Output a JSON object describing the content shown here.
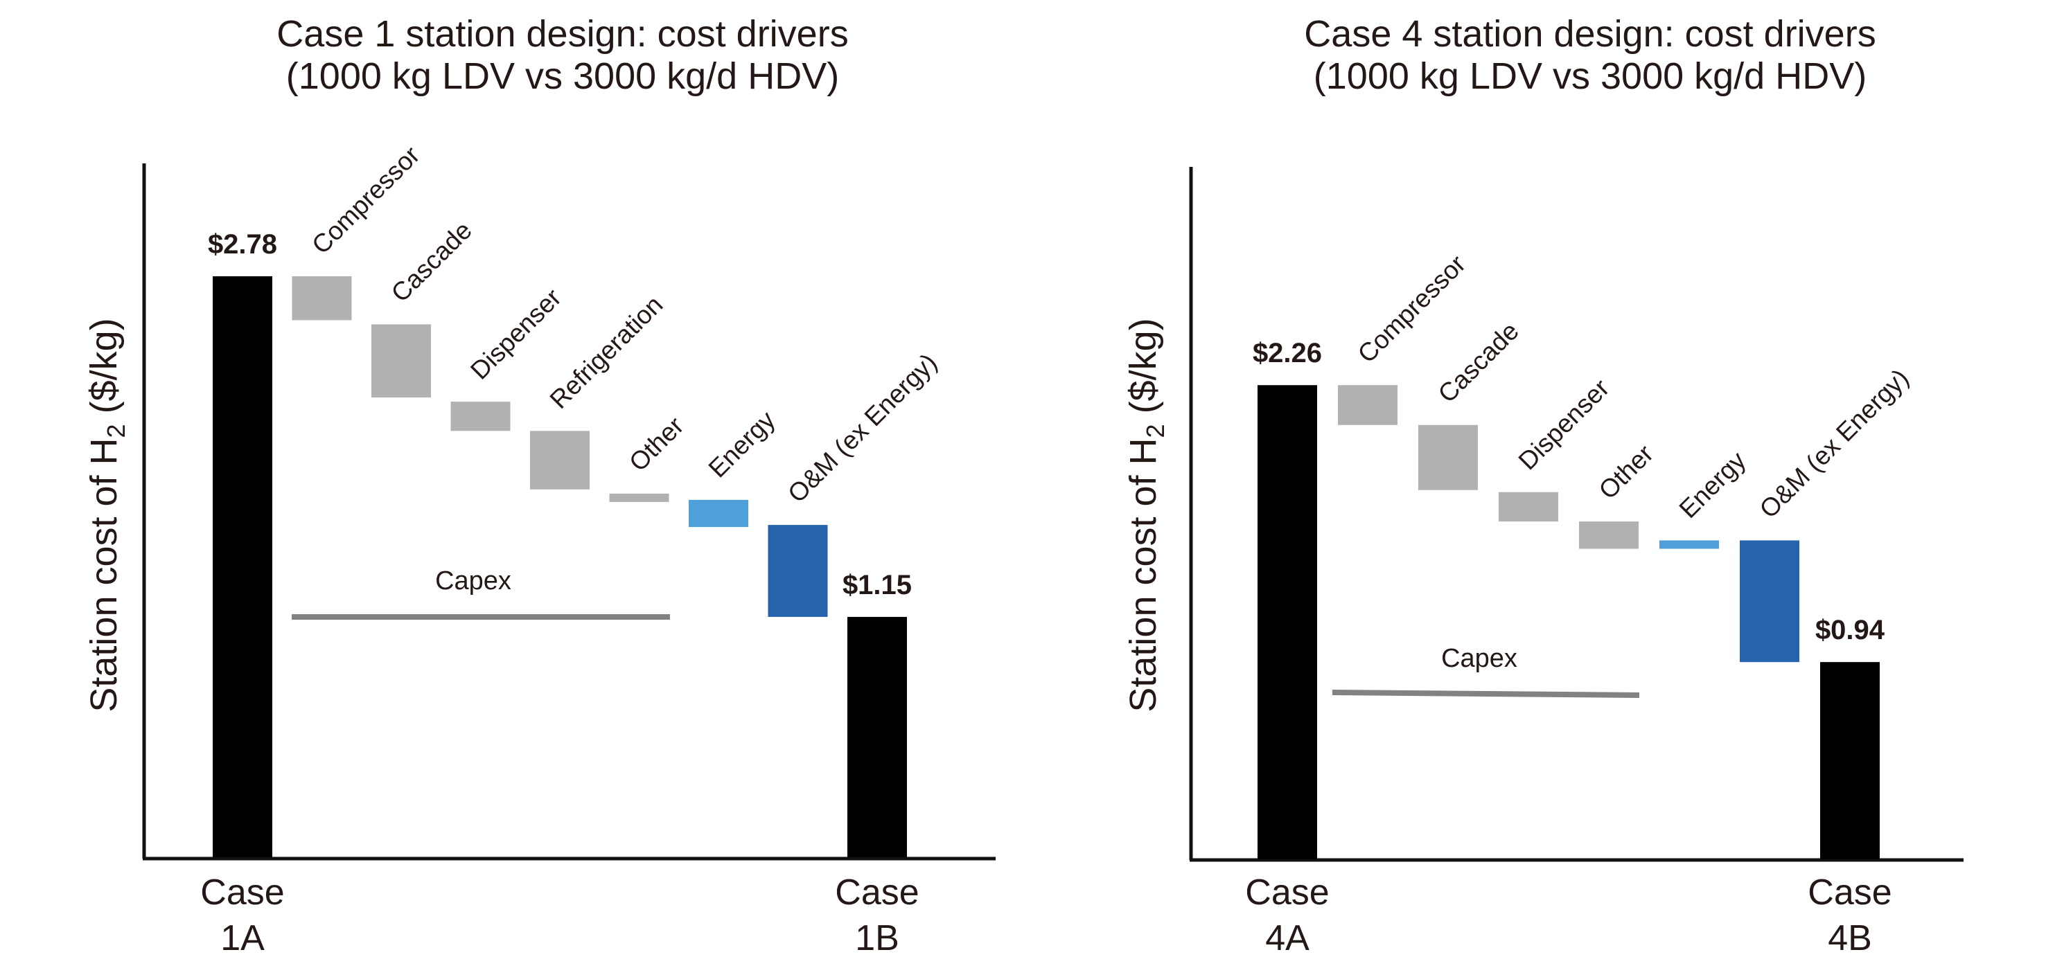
{
  "chart_data": [
    {
      "type": "waterfall",
      "title_lines": [
        "Case 1 station design: cost drivers",
        "(1000 kg LDV vs 3000 kg/d HDV)"
      ],
      "ylabel": "Station cost of H₂ ($/kg)",
      "ylabel_main": "Station cost of H",
      "ylabel_sub": "2",
      "ylabel_tail": " ($/kg)",
      "xlabel": "",
      "ylim": [
        0,
        3.3
      ],
      "grid": false,
      "ticks": false,
      "start": {
        "case_line1": "Case",
        "case_line2": "1A",
        "value": 2.78,
        "value_label": "$2.78"
      },
      "end": {
        "case_line1": "Case",
        "case_line2": "1B",
        "value": 1.15,
        "value_label": "$1.15"
      },
      "steps": [
        {
          "label": "Compressor",
          "from": 2.78,
          "to": 2.57,
          "category": "capex"
        },
        {
          "label": "Cascade",
          "from": 2.55,
          "to": 2.2,
          "category": "capex"
        },
        {
          "label": "Dispenser",
          "from": 2.18,
          "to": 2.04,
          "category": "capex"
        },
        {
          "label": "Refrigeration",
          "from": 2.04,
          "to": 1.76,
          "category": "capex"
        },
        {
          "label": "Other",
          "from": 1.74,
          "to": 1.7,
          "category": "capex"
        },
        {
          "label": "Energy",
          "from": 1.71,
          "to": 1.58,
          "category": "energy"
        },
        {
          "label": "O&M (ex Energy)",
          "from": 1.59,
          "to": 1.15,
          "category": "om"
        }
      ],
      "annotation": {
        "text": "Capex",
        "spans": [
          "Compressor",
          "Other"
        ],
        "level": 1.15
      }
    },
    {
      "type": "waterfall",
      "title_lines": [
        "Case 4 station design: cost drivers",
        "(1000 kg LDV vs 3000 kg/d HDV)"
      ],
      "ylabel": "Station cost of H₂ ($/kg)",
      "ylabel_main": "Station cost of H",
      "ylabel_sub": "2",
      "ylabel_tail": " ($/kg)",
      "xlabel": "",
      "ylim": [
        0,
        3.3
      ],
      "grid": false,
      "ticks": false,
      "start": {
        "case_line1": "Case",
        "case_line2": "4A",
        "value": 2.26,
        "value_label": "$2.26"
      },
      "end": {
        "case_line1": "Case",
        "case_line2": "4B",
        "value": 0.94,
        "value_label": "$0.94"
      },
      "steps": [
        {
          "label": "Compressor",
          "from": 2.26,
          "to": 2.07,
          "category": "capex"
        },
        {
          "label": "Cascade",
          "from": 2.07,
          "to": 1.76,
          "category": "capex"
        },
        {
          "label": "Dispenser",
          "from": 1.75,
          "to": 1.61,
          "category": "capex"
        },
        {
          "label": "Other",
          "from": 1.61,
          "to": 1.48,
          "category": "capex"
        },
        {
          "label": "Energy",
          "from": 1.52,
          "to": 1.48,
          "category": "energy"
        },
        {
          "label": "O&M (ex Energy)",
          "from": 1.52,
          "to": 0.94,
          "category": "om"
        }
      ],
      "annotation": {
        "text": "Capex",
        "spans": [
          "Compressor",
          "Other"
        ],
        "level": 0.79
      }
    }
  ],
  "colors": {
    "total": "#000000",
    "capex": "#b1b1b1",
    "energy": "#4f9fd9",
    "om": "#2563ac",
    "capex_line": "#828282",
    "text": "#231815",
    "axis": "#111111"
  }
}
